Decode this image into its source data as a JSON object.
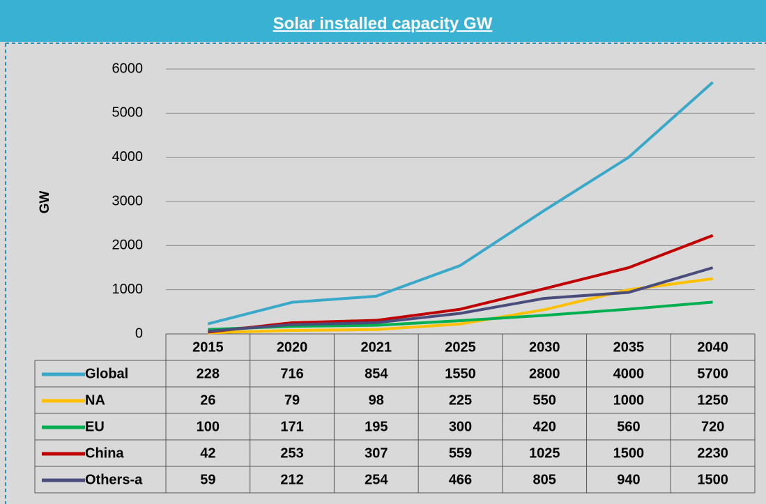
{
  "chart_data": {
    "type": "line",
    "title": "Solar installed capacity GW",
    "y_label": "GW",
    "categories": [
      "2015",
      "2020",
      "2021",
      "2025",
      "2030",
      "2035",
      "2040"
    ],
    "series": [
      {
        "name": "Global",
        "color": "#3aa9c9",
        "values": [
          228,
          716,
          854,
          1550,
          2800,
          4000,
          5700
        ]
      },
      {
        "name": "NA",
        "color": "#ffc000",
        "values": [
          26,
          79,
          98,
          225,
          550,
          1000,
          1250
        ]
      },
      {
        "name": "EU",
        "color": "#00b050",
        "values": [
          100,
          171,
          195,
          300,
          420,
          560,
          720
        ]
      },
      {
        "name": "China",
        "color": "#c00000",
        "values": [
          42,
          253,
          307,
          559,
          1025,
          1500,
          2230
        ]
      },
      {
        "name": "Others-a",
        "color": "#4a4d7c",
        "values": [
          59,
          212,
          254,
          466,
          805,
          940,
          1500
        ]
      }
    ],
    "ylim": [
      0,
      6000
    ],
    "yticks": [
      0,
      1000,
      2000,
      3000,
      4000,
      5000,
      6000
    ],
    "grid": true,
    "data_table": true
  }
}
